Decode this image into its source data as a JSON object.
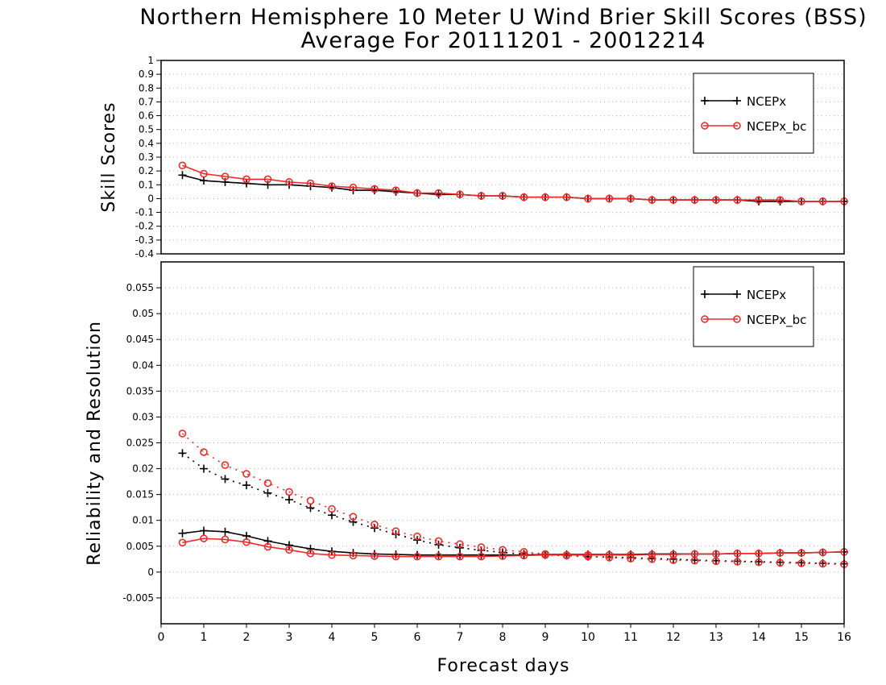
{
  "title_line1": "Northern Hemisphere 10 Meter U Wind Brier Skill Scores (BSS)",
  "title_line2": "Average For 20111201 - 20012214",
  "colors": {
    "ncepx": "#000000",
    "ncepx_bc": "#ee2a2a",
    "grid": "#b4b4b4"
  },
  "chart_data": [
    {
      "type": "line",
      "panel": "top",
      "xlabel": "",
      "ylabel": "Skill Scores",
      "xlim": [
        0,
        16
      ],
      "ylim": [
        -0.4,
        1
      ],
      "y_ticks": [
        -0.4,
        -0.3,
        -0.2,
        -0.1,
        0,
        0.1,
        0.2,
        0.3,
        0.4,
        0.5,
        0.6,
        0.7,
        0.8,
        0.9,
        1
      ],
      "y_tick_labels": [
        "-0.4",
        "-0.3",
        "-0.2",
        "-0.1",
        "0",
        "0.1",
        "0.2",
        "0.3",
        "0.4",
        "0.5",
        "0.6",
        "0.7",
        "0.8",
        "0.9",
        "1"
      ],
      "grid": true,
      "legend_position": "top-right",
      "legend": [
        "NCEPx",
        "NCEPx_bc"
      ],
      "x": [
        0.5,
        1,
        1.5,
        2,
        2.5,
        3,
        3.5,
        4,
        4.5,
        5,
        5.5,
        6,
        6.5,
        7,
        7.5,
        8,
        8.5,
        9,
        9.5,
        10,
        10.5,
        11,
        11.5,
        12,
        12.5,
        13,
        13.5,
        14,
        14.5,
        15,
        15.5,
        16
      ],
      "series": [
        {
          "name": "NCEPx",
          "marker": "plus",
          "style": "solid",
          "values": [
            0.17,
            0.13,
            0.12,
            0.11,
            0.1,
            0.1,
            0.09,
            0.08,
            0.06,
            0.06,
            0.05,
            0.04,
            0.03,
            0.03,
            0.02,
            0.02,
            0.01,
            0.01,
            0.01,
            0.0,
            0.0,
            0.0,
            -0.01,
            -0.01,
            -0.01,
            -0.01,
            -0.01,
            -0.02,
            -0.02,
            -0.02,
            -0.02,
            -0.02
          ]
        },
        {
          "name": "NCEPx_bc",
          "marker": "circle",
          "style": "solid",
          "values": [
            0.24,
            0.18,
            0.16,
            0.14,
            0.14,
            0.12,
            0.11,
            0.09,
            0.08,
            0.07,
            0.06,
            0.04,
            0.04,
            0.03,
            0.02,
            0.02,
            0.01,
            0.01,
            0.01,
            0.0,
            0.0,
            0.0,
            -0.01,
            -0.01,
            -0.01,
            -0.01,
            -0.01,
            -0.01,
            -0.01,
            -0.02,
            -0.02,
            -0.02
          ]
        }
      ]
    },
    {
      "type": "line",
      "panel": "bottom",
      "xlabel": "Forecast days",
      "ylabel": "Reliability and Resolution",
      "xlim": [
        0,
        16
      ],
      "ylim": [
        -0.01,
        0.06
      ],
      "x_ticks": [
        0,
        1,
        2,
        3,
        4,
        5,
        6,
        7,
        8,
        9,
        10,
        11,
        12,
        13,
        14,
        15,
        16
      ],
      "x_tick_labels": [
        "0",
        "1",
        "2",
        "3",
        "4",
        "5",
        "6",
        "7",
        "8",
        "9",
        "10",
        "11",
        "12",
        "13",
        "14",
        "15",
        "16"
      ],
      "y_ticks": [
        -0.005,
        0,
        0.005,
        0.01,
        0.015,
        0.02,
        0.025,
        0.03,
        0.035,
        0.04,
        0.045,
        0.05,
        0.055
      ],
      "y_tick_labels": [
        "-0.005",
        "0",
        "0.005",
        "0.01",
        "0.015",
        "0.02",
        "0.025",
        "0.03",
        "0.035",
        "0.04",
        "0.045",
        "0.05",
        "0.055"
      ],
      "grid": true,
      "legend_position": "top-right",
      "legend": [
        "NCEPx",
        "NCEPx_bc"
      ],
      "x": [
        0.5,
        1,
        1.5,
        2,
        2.5,
        3,
        3.5,
        4,
        4.5,
        5,
        5.5,
        6,
        6.5,
        7,
        7.5,
        8,
        8.5,
        9,
        9.5,
        10,
        10.5,
        11,
        11.5,
        12,
        12.5,
        13,
        13.5,
        14,
        14.5,
        15,
        15.5,
        16
      ],
      "series": [
        {
          "name": "NCEPx",
          "marker": "plus",
          "style": "solid",
          "values": [
            0.0075,
            0.008,
            0.0078,
            0.007,
            0.006,
            0.0052,
            0.0045,
            0.004,
            0.0037,
            0.0035,
            0.0034,
            0.0033,
            0.0033,
            0.0033,
            0.0033,
            0.0033,
            0.0033,
            0.0034,
            0.0034,
            0.0034,
            0.0034,
            0.0034,
            0.0035,
            0.0035,
            0.0035,
            0.0035,
            0.0036,
            0.0036,
            0.0037,
            0.0037,
            0.0038,
            0.0039
          ]
        },
        {
          "name": "NCEPx",
          "marker": "plus",
          "style": "dotted",
          "values": [
            0.023,
            0.02,
            0.018,
            0.0168,
            0.0153,
            0.014,
            0.0124,
            0.011,
            0.0097,
            0.0085,
            0.0073,
            0.0062,
            0.0053,
            0.0047,
            0.0042,
            0.0038,
            0.0035,
            0.0033,
            0.0032,
            0.003,
            0.0029,
            0.0028,
            0.0026,
            0.0025,
            0.0023,
            0.0022,
            0.0021,
            0.002,
            0.0019,
            0.0018,
            0.0017,
            0.0016
          ]
        },
        {
          "name": "NCEPx_bc",
          "marker": "circle",
          "style": "solid",
          "values": [
            0.0057,
            0.0065,
            0.0063,
            0.0058,
            0.0049,
            0.0043,
            0.0036,
            0.0033,
            0.0032,
            0.0031,
            0.003,
            0.003,
            0.003,
            0.003,
            0.003,
            0.0031,
            0.0032,
            0.0033,
            0.0033,
            0.0033,
            0.0033,
            0.0033,
            0.0034,
            0.0034,
            0.0035,
            0.0035,
            0.0036,
            0.0036,
            0.0037,
            0.0037,
            0.0038,
            0.0039
          ]
        },
        {
          "name": "NCEPx_bc",
          "marker": "circle",
          "style": "dotted",
          "values": [
            0.0268,
            0.0232,
            0.0207,
            0.019,
            0.0172,
            0.0155,
            0.0138,
            0.0122,
            0.0107,
            0.0092,
            0.0079,
            0.0069,
            0.006,
            0.0054,
            0.0048,
            0.0043,
            0.0039,
            0.0035,
            0.0032,
            0.003,
            0.0028,
            0.0026,
            0.0025,
            0.0023,
            0.0022,
            0.0021,
            0.002,
            0.0019,
            0.0018,
            0.0017,
            0.0016,
            0.0015
          ]
        }
      ]
    }
  ]
}
